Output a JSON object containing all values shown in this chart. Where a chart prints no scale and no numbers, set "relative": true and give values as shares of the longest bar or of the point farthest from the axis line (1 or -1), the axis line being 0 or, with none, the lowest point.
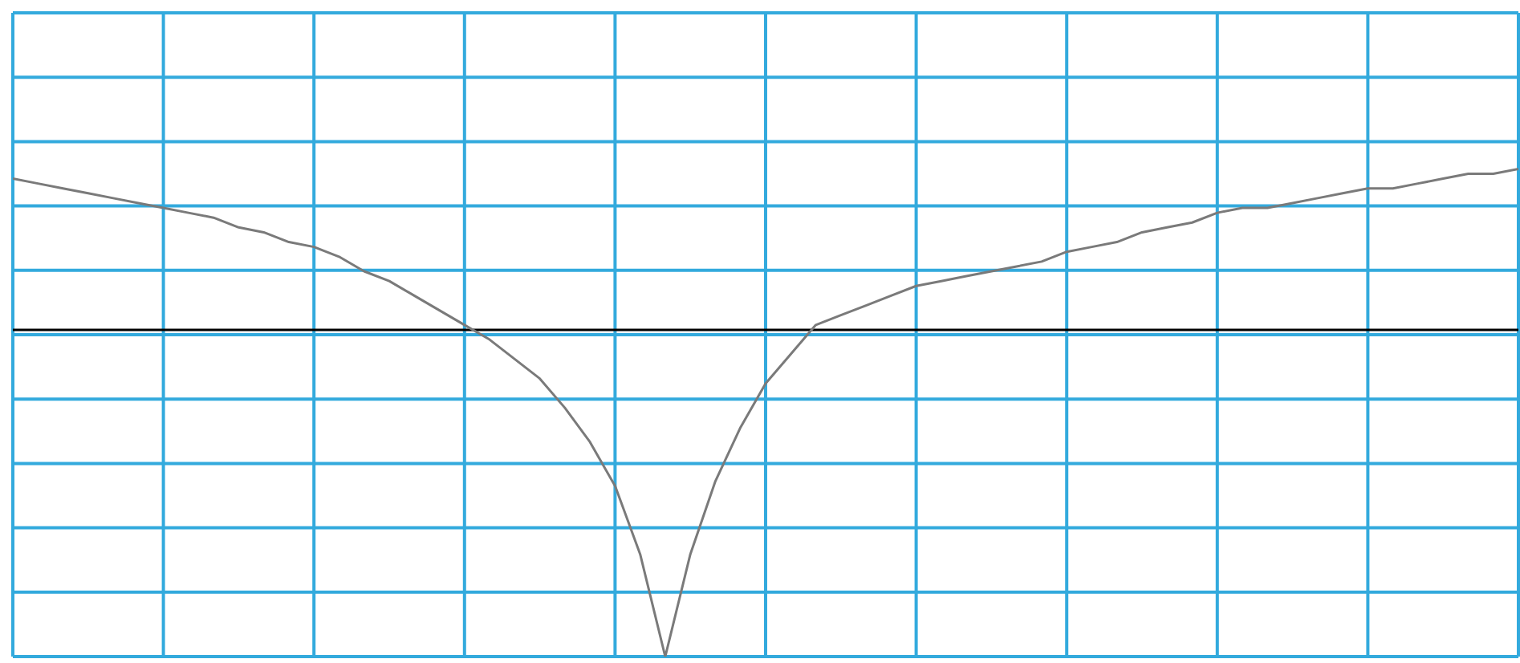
{
  "chart_data": {
    "type": "line",
    "relative": true,
    "categories": [
      null,
      null,
      null,
      null,
      null,
      null,
      null,
      null,
      null,
      null,
      null,
      null,
      null,
      null,
      null,
      null,
      null,
      null,
      null,
      null,
      null,
      null,
      null,
      null,
      null,
      null,
      null,
      null,
      null,
      null,
      null,
      null,
      null,
      null,
      null,
      null,
      null,
      null,
      null,
      null,
      null,
      null,
      null,
      null,
      null,
      null,
      null,
      null,
      null,
      null,
      null,
      null,
      null,
      null,
      null,
      null,
      null,
      null,
      null,
      null,
      null
    ],
    "series": [
      {
        "color": "#7a7a7a",
        "values": [
          0.98,
          0.97,
          0.96,
          0.95,
          0.94,
          0.93,
          0.92,
          0.91,
          0.9,
          0.88,
          0.87,
          0.85,
          0.84,
          0.82,
          0.79,
          0.77,
          0.74,
          0.71,
          0.68,
          0.65,
          0.61,
          0.57,
          0.51,
          0.44,
          0.35,
          0.21,
          0,
          0.21,
          0.36,
          0.47,
          0.56,
          0.62,
          0.68,
          0.7,
          0.72,
          0.74,
          0.76,
          0.77,
          0.78,
          0.79,
          0.8,
          0.81,
          0.83,
          0.84,
          0.85,
          0.87,
          0.88,
          0.89,
          0.91,
          0.92,
          0.92,
          0.93,
          0.94,
          0.95,
          0.96,
          0.96,
          0.97,
          0.98,
          0.99,
          0.99,
          1.0
        ]
      }
    ],
    "grid": true,
    "marker": "none",
    "line_style": "solid",
    "ref_lines": [
      {
        "axis": "y",
        "value": 0.67,
        "color": "#000000"
      }
    ]
  }
}
